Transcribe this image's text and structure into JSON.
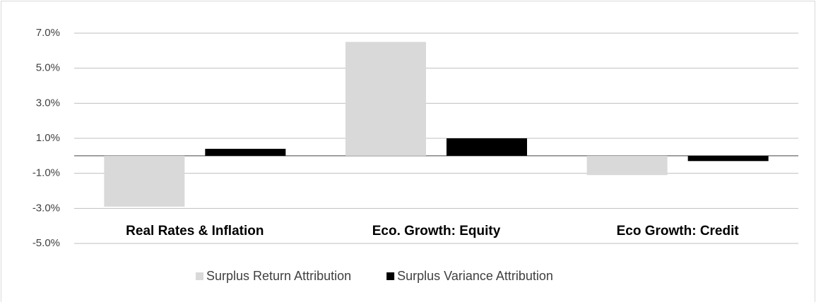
{
  "chart_data": {
    "type": "bar",
    "categories": [
      "Real Rates & Inflation",
      "Eco. Growth: Equity",
      "Eco Growth: Credit"
    ],
    "series": [
      {
        "name": "Surplus Return Attribution",
        "color": "#d9d9d9",
        "values": [
          -2.9,
          6.5,
          -1.1
        ]
      },
      {
        "name": "Surplus Variance Attribution",
        "color": "#000000",
        "values": [
          0.4,
          1.0,
          -0.3
        ]
      }
    ],
    "ylim": [
      -5,
      7
    ],
    "yticks": [
      {
        "value": -5,
        "label": "-5.0%"
      },
      {
        "value": -3,
        "label": "-3.0%"
      },
      {
        "value": -1,
        "label": "-1.0%"
      },
      {
        "value": 1,
        "label": "1.0%"
      },
      {
        "value": 3,
        "label": "3.0%"
      },
      {
        "value": 5,
        "label": "5.0%"
      },
      {
        "value": 7,
        "label": "7.0%"
      }
    ],
    "grid": true,
    "legend": "bottom"
  }
}
